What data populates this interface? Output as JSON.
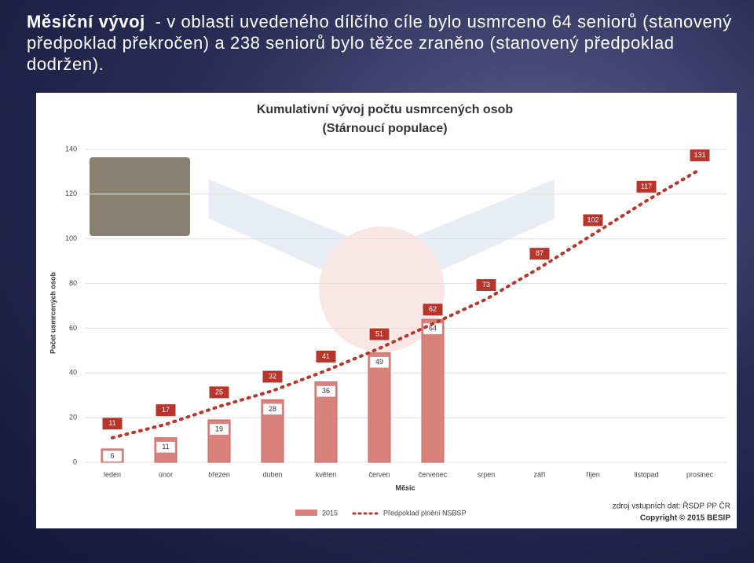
{
  "slide": {
    "heading_bold": "Měsíční vývoj",
    "text": " - v oblasti uvedeného dílčího cíle bylo usmrceno 64 seniorů (stanovený předpoklad překročen) a 238 seniorů bylo těžce zraněno (stanovený předpoklad dodržen)."
  },
  "chart_data": {
    "type": "bar_line",
    "title": "Kumulativní vývoj počtu usmrcených osob",
    "subtitle": "(Stárnoucí populace)",
    "ylabel": "Počet usmrcených osob",
    "xlabel": "Měsíc",
    "categories": [
      "leden",
      "únor",
      "březen",
      "duben",
      "květen",
      "červen",
      "červenec",
      "srpen",
      "září",
      "říjen",
      "listopad",
      "prosinec"
    ],
    "series": [
      {
        "name": "2015",
        "color": "#d9817b",
        "values": [
          6,
          11,
          19,
          28,
          36,
          49,
          64,
          null,
          null,
          null,
          null,
          null
        ]
      },
      {
        "name": "Předpoklad plnění NSBSP",
        "color": "#b8352c",
        "values": [
          11,
          17,
          25,
          32,
          41,
          51,
          62,
          73,
          87,
          102,
          117,
          131
        ]
      }
    ],
    "ylim": [
      0,
      140
    ],
    "yticks": [
      0,
      20,
      40,
      60,
      80,
      100,
      120,
      140
    ],
    "grid": true,
    "source": "zdroj vstupních dat: ŘSDP PP ČR",
    "copyright": "Copyright © 2015 BESIP"
  }
}
